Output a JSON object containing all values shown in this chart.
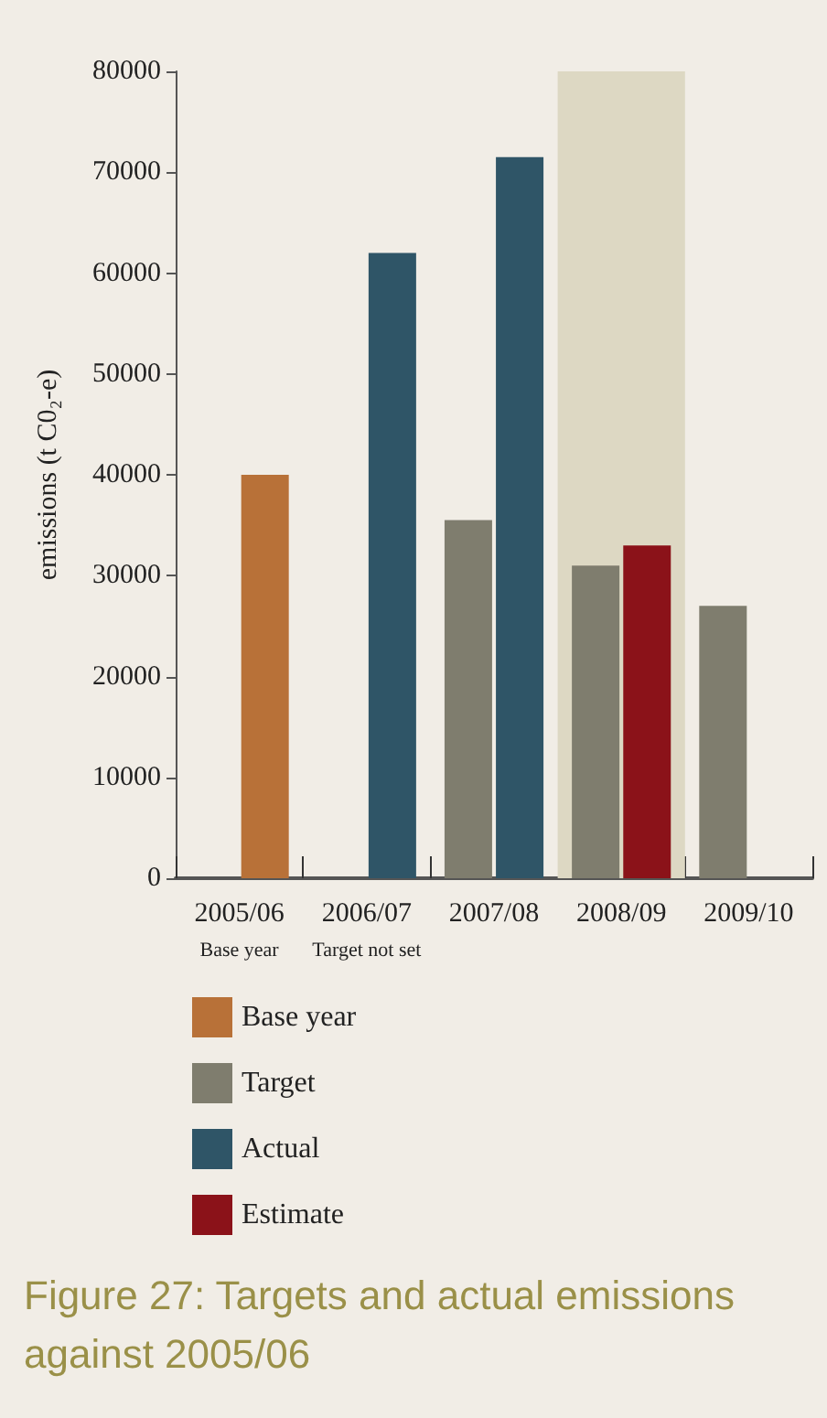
{
  "chart_data": {
    "type": "bar",
    "title": "Figure 27: Targets and actual emissions against 2005/06",
    "ylabel": "emissions (t C0₂-e)",
    "categories": [
      "2005/06",
      "2006/07",
      "2007/08",
      "2008/09",
      "2009/10"
    ],
    "series": [
      {
        "name": "Base year",
        "color": "#b87138",
        "values": [
          40000,
          null,
          null,
          null,
          null
        ]
      },
      {
        "name": "Target",
        "color": "#7f7d6e",
        "values": [
          null,
          null,
          35500,
          31000,
          27000
        ]
      },
      {
        "name": "Actual",
        "color": "#2f5567",
        "values": [
          null,
          62000,
          71500,
          null,
          null
        ]
      },
      {
        "name": "Estimate",
        "color": "#8b1219",
        "values": [
          null,
          null,
          null,
          33000,
          null
        ]
      }
    ],
    "ylim": [
      0,
      80000
    ],
    "yticks": [
      0,
      10000,
      20000,
      30000,
      40000,
      50000,
      60000,
      70000,
      80000
    ],
    "bands": [
      {
        "axis": "x",
        "from": "2008/09",
        "to": "2008/09",
        "color": "#ddd8c3"
      }
    ],
    "annotations": [
      "Base year",
      "Target not set"
    ],
    "grid": false,
    "legend": "bottom left"
  }
}
